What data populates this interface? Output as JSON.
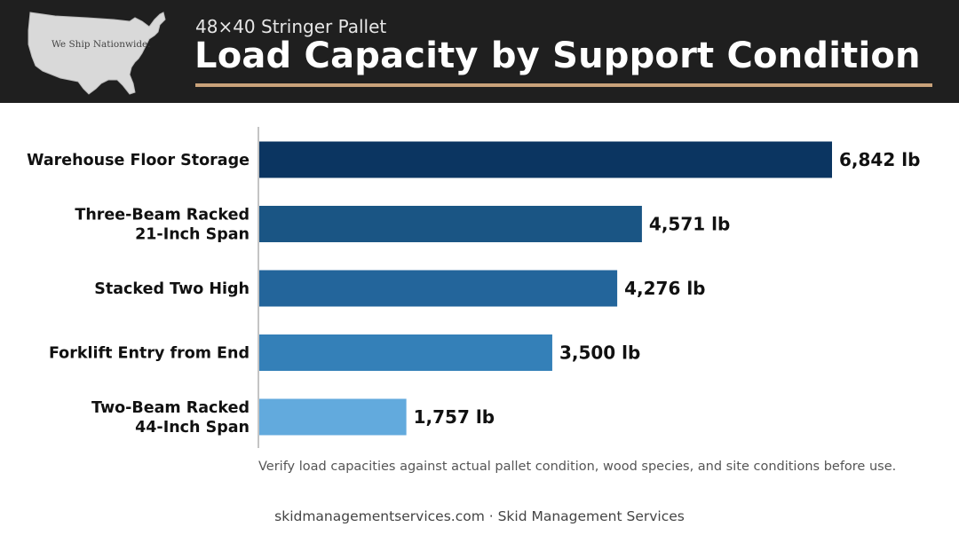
{
  "header": {
    "map_caption": "We Ship Nationwide.",
    "subtitle": "48×40 Stringer Pallet",
    "title": "Load Capacity by Support Condition",
    "accent_color": "#c9a27a",
    "background_color": "#1f1f1f"
  },
  "chart_data": {
    "type": "bar",
    "orientation": "horizontal",
    "title": "Load Capacity by Support Condition",
    "subtitle": "48×40 Stringer Pallet",
    "categories": [
      [
        "Warehouse Floor Storage"
      ],
      [
        "Three-Beam Racked",
        "21-Inch Span"
      ],
      [
        "Stacked Two High"
      ],
      [
        "Forklift Entry from End"
      ],
      [
        "Two-Beam Racked",
        "44-Inch Span"
      ]
    ],
    "values": [
      6842,
      4571,
      4276,
      3500,
      1757
    ],
    "value_labels": [
      "6,842 lb",
      "4,571 lb",
      "4,276 lb",
      "3,500 lb",
      "1,757 lb"
    ],
    "unit": "lb",
    "xlim": [
      0,
      7000
    ],
    "colors": [
      "#0b3561",
      "#1a5584",
      "#23659b",
      "#3480b8",
      "#62aadd"
    ],
    "grid": false
  },
  "note": "Verify load capacities against actual pallet condition, wood species, and site conditions before use.",
  "footer": "skidmanagementservices.com · Skid Management Services"
}
